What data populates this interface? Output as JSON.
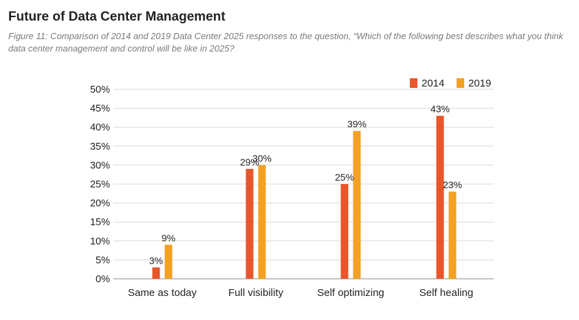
{
  "title": "Future of Data Center Management",
  "caption": "Figure 11: Comparison of 2014 and 2019 Data Center 2025 responses to the question, “Which of the following best describes what you think data center management and control will be like in 2025?",
  "chart_data": {
    "type": "bar",
    "categories": [
      "Same as today",
      "Full visibility",
      "Self optimizing",
      "Self healing"
    ],
    "series": [
      {
        "name": "2014",
        "values": [
          3,
          29,
          25,
          43
        ],
        "labels": [
          "3%",
          "29%",
          "25%",
          "43%"
        ],
        "color": "#e8562a"
      },
      {
        "name": "2019",
        "values": [
          9,
          30,
          39,
          23
        ],
        "labels": [
          "9%",
          "30%",
          "39%",
          "23%"
        ],
        "color": "#f4a023"
      }
    ],
    "yticks": [
      {
        "value": 0,
        "label": "0%"
      },
      {
        "value": 5,
        "label": "5%"
      },
      {
        "value": 10,
        "label": "10%"
      },
      {
        "value": 15,
        "label": "15%"
      },
      {
        "value": 20,
        "label": "20%"
      },
      {
        "value": 25,
        "label": "25%"
      },
      {
        "value": 30,
        "label": "30%"
      },
      {
        "value": 35,
        "label": "35%"
      },
      {
        "value": 40,
        "label": "40%"
      },
      {
        "value": 45,
        "label": "45%"
      },
      {
        "value": 50,
        "label": "50%"
      }
    ],
    "ylim": [
      0,
      50
    ],
    "grid": true,
    "legend_position": "top-right"
  }
}
